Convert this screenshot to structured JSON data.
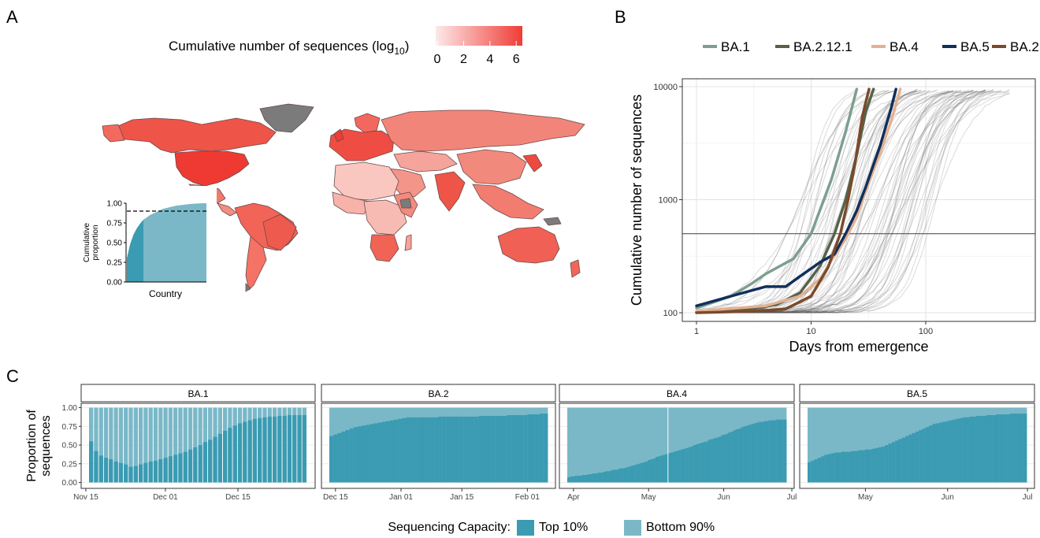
{
  "panels": {
    "a": {
      "label": "A"
    },
    "b": {
      "label": "B"
    },
    "c": {
      "label": "C"
    }
  },
  "colors": {
    "top10": "#3a9bb2",
    "bottom90": "#7ab8c8",
    "no_data": "#7b7b7b",
    "map_low": "#fde9e9",
    "map_high": "#f03c36",
    "background_lines": "#555555"
  },
  "map_legend": {
    "title_prefix": "Cumulative number of sequences (log",
    "title_sub": "10",
    "title_suffix": ")",
    "ticks": [
      "0",
      "2",
      "4",
      "6"
    ]
  },
  "inset": {
    "ylabel_line1": "Cumulative",
    "ylabel_line2": "proportion",
    "xlabel": "Country",
    "yticks": [
      "0.00",
      "0.25",
      "0.50",
      "0.75",
      "1.00"
    ],
    "threshold": 0.9
  },
  "panel_b": {
    "xlabel": "Days from emergence",
    "ylabel": "Cumulative number of sequences",
    "xticks": [
      "1",
      "10",
      "100"
    ],
    "yticks": [
      "100",
      "1000",
      "10000"
    ],
    "hline": 500
  },
  "panel_c": {
    "ylabel_line1": "Proportion of",
    "ylabel_line2": "sequences",
    "yticks": [
      "0.00",
      "0.25",
      "0.50",
      "0.75",
      "1.00"
    ],
    "facets": [
      {
        "title": "BA.1",
        "xticks": [
          "Nov 15",
          "Dec 01",
          "Dec 15"
        ]
      },
      {
        "title": "BA.2",
        "xticks": [
          "Dec 15",
          "Jan 01",
          "Jan 15",
          "Feb 01"
        ]
      },
      {
        "title": "BA.4",
        "xticks": [
          "Apr",
          "May",
          "Jun",
          "Jul"
        ]
      },
      {
        "title": "BA.5",
        "xticks": [
          "May",
          "Jun",
          "Jul"
        ]
      }
    ]
  },
  "bottom_legend": {
    "title": "Sequencing Capacity:",
    "items": [
      "Top 10%",
      "Bottom 90%"
    ]
  },
  "chart_data": [
    {
      "type": "area",
      "panel": "A-inset",
      "xlabel": "Country",
      "ylabel": "Cumulative proportion",
      "ylim": [
        0,
        1
      ],
      "top10_share": 0.2,
      "cumulative_proportion": [
        0.3,
        0.48,
        0.6,
        0.68,
        0.74,
        0.79,
        0.82,
        0.85,
        0.87,
        0.89,
        0.91,
        0.93,
        0.94,
        0.95,
        0.96,
        0.97,
        0.975,
        0.98,
        0.985,
        0.99,
        0.993,
        0.996,
        0.998,
        1.0,
        1.0
      ]
    },
    {
      "type": "line",
      "panel": "B",
      "xlabel": "Days from emergence",
      "ylabel": "Cumulative number of sequences",
      "x_scale": "log",
      "y_scale": "log",
      "xlim": [
        1,
        700
      ],
      "ylim": [
        90,
        11000
      ],
      "hline": 500,
      "legend": "top",
      "series": [
        {
          "name": "BA.1",
          "color": "#7e9e90",
          "x": [
            1,
            2,
            3,
            4,
            7,
            10,
            15,
            20,
            25
          ],
          "y": [
            110,
            140,
            180,
            220,
            300,
            500,
            1500,
            4000,
            9500
          ]
        },
        {
          "name": "BA.2.12.1",
          "color": "#56624a",
          "x": [
            1,
            3,
            5,
            8,
            12,
            16,
            20,
            25,
            30,
            35
          ],
          "y": [
            102,
            108,
            118,
            150,
            260,
            500,
            1000,
            2500,
            6000,
            9500
          ]
        },
        {
          "name": "BA.4",
          "color": "#e3b192",
          "x": [
            1,
            4,
            8,
            12,
            16,
            20,
            25,
            30,
            40,
            50,
            60
          ],
          "y": [
            103,
            115,
            140,
            200,
            320,
            450,
            700,
            1200,
            2600,
            5000,
            9500
          ]
        },
        {
          "name": "BA.5",
          "color": "#112f5b",
          "x": [
            1,
            2,
            4,
            6,
            8,
            12,
            16,
            20,
            25,
            30,
            40,
            50,
            55
          ],
          "y": [
            115,
            140,
            170,
            170,
            210,
            280,
            330,
            500,
            800,
            1300,
            3000,
            6500,
            9500
          ]
        },
        {
          "name": "BA.2",
          "color": "#7b4a2b",
          "x": [
            1,
            3,
            6,
            10,
            14,
            18,
            21,
            24,
            28,
            32
          ],
          "y": [
            100,
            103,
            108,
            140,
            250,
            500,
            1000,
            2000,
            5500,
            9500
          ]
        }
      ]
    },
    {
      "type": "bar",
      "panel": "C",
      "facet": "BA.1",
      "value": "Top 10% proportion",
      "ylim": [
        0,
        1
      ],
      "categories": [
        "Nov 15",
        "Nov 16",
        "Nov 17",
        "Nov 18",
        "Nov 19",
        "Nov 20",
        "Nov 21",
        "Nov 22",
        "Nov 23",
        "Nov 24",
        "Nov 25",
        "Nov 26",
        "Nov 27",
        "Nov 28",
        "Nov 29",
        "Nov 30",
        "Dec 01",
        "Dec 02",
        "Dec 03",
        "Dec 04",
        "Dec 05",
        "Dec 06",
        "Dec 07",
        "Dec 08",
        "Dec 09",
        "Dec 10",
        "Dec 11",
        "Dec 12",
        "Dec 13",
        "Dec 14",
        "Dec 15",
        "Dec 16",
        "Dec 17",
        "Dec 18",
        "Dec 19",
        "Dec 20",
        "Dec 21",
        "Dec 22",
        "Dec 23",
        "Dec 24",
        "Dec 25",
        "Dec 26",
        "Dec 27",
        "Dec 28"
      ],
      "values": [
        0.55,
        0.42,
        0.36,
        0.33,
        0.31,
        0.28,
        0.26,
        0.24,
        0.21,
        0.22,
        0.24,
        0.26,
        0.28,
        0.29,
        0.31,
        0.33,
        0.35,
        0.37,
        0.39,
        0.41,
        0.44,
        0.47,
        0.5,
        0.54,
        0.57,
        0.61,
        0.65,
        0.69,
        0.73,
        0.76,
        0.79,
        0.81,
        0.83,
        0.85,
        0.86,
        0.87,
        0.88,
        0.88,
        0.89,
        0.89,
        0.9,
        0.9,
        0.9,
        0.9
      ]
    },
    {
      "type": "bar",
      "panel": "C",
      "facet": "BA.2",
      "value": "Top 10% proportion",
      "ylim": [
        0,
        1
      ],
      "categories": [
        "Dec 13",
        "Dec 14",
        "Dec 15",
        "Dec 16",
        "Dec 17",
        "Dec 18",
        "Dec 19",
        "Dec 20",
        "Dec 21",
        "Dec 22",
        "Dec 23",
        "Dec 24",
        "Dec 25",
        "Dec 26",
        "Dec 27",
        "Dec 28",
        "Dec 29",
        "Dec 30",
        "Dec 31",
        "Jan 01",
        "Jan 02",
        "Jan 03",
        "Jan 04",
        "Jan 05",
        "Jan 06",
        "Jan 07",
        "Jan 08",
        "Jan 09",
        "Jan 10",
        "Jan 11",
        "Jan 12",
        "Jan 13",
        "Jan 14",
        "Jan 15",
        "Jan 16",
        "Jan 17",
        "Jan 18",
        "Jan 19",
        "Jan 20",
        "Jan 21",
        "Jan 22",
        "Jan 23",
        "Jan 24",
        "Jan 25",
        "Jan 26",
        "Jan 27",
        "Jan 28",
        "Jan 29",
        "Jan 30",
        "Jan 31",
        "Feb 01",
        "Feb 02",
        "Feb 03",
        "Feb 04"
      ],
      "values": [
        0.62,
        0.64,
        0.66,
        0.68,
        0.7,
        0.72,
        0.74,
        0.75,
        0.76,
        0.77,
        0.78,
        0.79,
        0.8,
        0.81,
        0.82,
        0.83,
        0.84,
        0.85,
        0.86,
        0.87,
        0.87,
        0.87,
        0.87,
        0.87,
        0.87,
        0.87,
        0.87,
        0.88,
        0.88,
        0.88,
        0.88,
        0.88,
        0.88,
        0.88,
        0.88,
        0.88,
        0.88,
        0.89,
        0.89,
        0.89,
        0.89,
        0.89,
        0.89,
        0.89,
        0.9,
        0.9,
        0.9,
        0.9,
        0.9,
        0.91,
        0.91,
        0.91,
        0.92,
        0.92
      ]
    },
    {
      "type": "bar",
      "panel": "C",
      "facet": "BA.4",
      "value": "Top 10% proportion",
      "ylim": [
        0,
        1
      ],
      "date_range": [
        "Apr 01",
        "Jun 26"
      ],
      "values": [
        0.07,
        0.08,
        0.08,
        0.09,
        0.09,
        0.09,
        0.1,
        0.1,
        0.11,
        0.11,
        0.12,
        0.12,
        0.13,
        0.13,
        0.14,
        0.15,
        0.15,
        0.16,
        0.17,
        0.17,
        0.18,
        0.19,
        0.19,
        0.2,
        0.21,
        0.22,
        0.23,
        0.24,
        0.25,
        0.26,
        0.27,
        0.28,
        0.3,
        0.31,
        0.32,
        0.34,
        0.35,
        0.36,
        0.37,
        0.38,
        0.39,
        0.4,
        0.41,
        0.42,
        0.43,
        0.44,
        0.45,
        0.46,
        0.47,
        0.48,
        0.5,
        0.51,
        0.52,
        0.53,
        0.54,
        0.55,
        0.57,
        0.58,
        0.59,
        0.6,
        0.61,
        0.63,
        0.64,
        0.65,
        0.67,
        0.68,
        0.7,
        0.71,
        0.72,
        0.74,
        0.75,
        0.76,
        0.77,
        0.78,
        0.79,
        0.8,
        0.81,
        0.81,
        0.82,
        0.82,
        0.83,
        0.83,
        0.83,
        0.84,
        0.84,
        0.84,
        0.84
      ]
    },
    {
      "type": "bar",
      "panel": "C",
      "facet": "BA.5",
      "value": "Top 10% proportion",
      "ylim": [
        0,
        1
      ],
      "date_range": [
        "Apr 23",
        "Jun 26"
      ],
      "values": [
        0.27,
        0.29,
        0.31,
        0.33,
        0.35,
        0.37,
        0.38,
        0.39,
        0.4,
        0.4,
        0.41,
        0.41,
        0.41,
        0.42,
        0.42,
        0.43,
        0.43,
        0.44,
        0.44,
        0.45,
        0.46,
        0.47,
        0.48,
        0.5,
        0.52,
        0.54,
        0.56,
        0.58,
        0.6,
        0.62,
        0.64,
        0.66,
        0.68,
        0.7,
        0.72,
        0.74,
        0.76,
        0.78,
        0.79,
        0.8,
        0.81,
        0.82,
        0.83,
        0.84,
        0.85,
        0.86,
        0.87,
        0.87,
        0.88,
        0.88,
        0.89,
        0.89,
        0.89,
        0.9,
        0.9,
        0.9,
        0.91,
        0.91,
        0.91,
        0.91,
        0.92,
        0.92,
        0.92,
        0.92,
        0.92
      ]
    }
  ]
}
